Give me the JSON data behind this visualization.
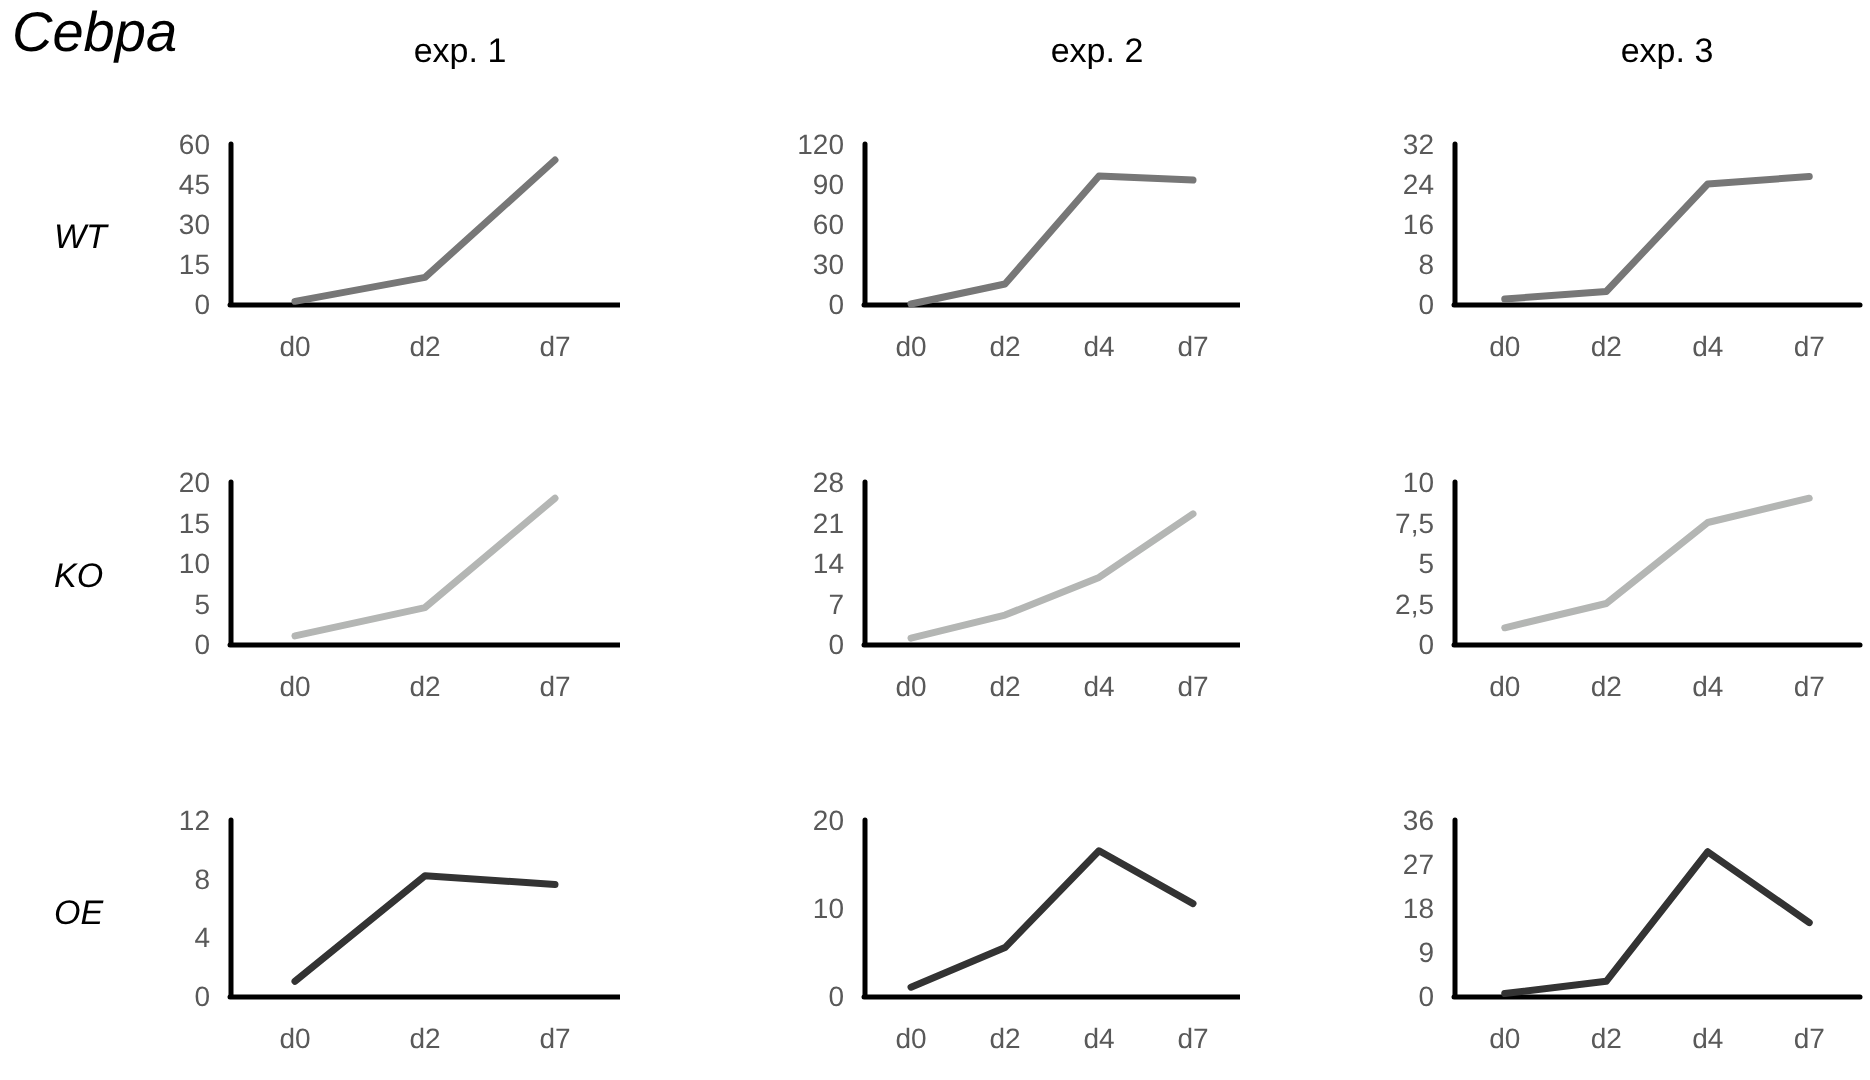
{
  "chart_data": [
    {
      "type": "line",
      "title": "exp. 1",
      "ylabel": "WT",
      "annotations": [
        "Cebpa"
      ],
      "categories": [
        "d0",
        "d2",
        "d7"
      ],
      "values": [
        1,
        10,
        54
      ],
      "color": "#777777",
      "ylim": [
        0,
        60
      ],
      "yticks": [
        0,
        15,
        30,
        45,
        60
      ]
    },
    {
      "type": "line",
      "title": "exp. 2",
      "categories": [
        "d0",
        "d2",
        "d4",
        "d7"
      ],
      "values": [
        0,
        15,
        96,
        93
      ],
      "color": "#777777",
      "ylim": [
        0,
        120
      ],
      "yticks": [
        0,
        30,
        60,
        90,
        120
      ]
    },
    {
      "type": "line",
      "title": "exp. 3",
      "categories": [
        "d0",
        "d2",
        "d4",
        "d7"
      ],
      "values": [
        1,
        2.5,
        24,
        25.5
      ],
      "color": "#777777",
      "ylim": [
        0,
        32
      ],
      "yticks": [
        0,
        8,
        16,
        24,
        32
      ]
    },
    {
      "type": "line",
      "ylabel": "KO",
      "categories": [
        "d0",
        "d2",
        "d7"
      ],
      "values": [
        1,
        4.5,
        18
      ],
      "color": "#b4b6b4",
      "ylim": [
        0,
        20
      ],
      "yticks": [
        0,
        5,
        10,
        15,
        20
      ]
    },
    {
      "type": "line",
      "categories": [
        "d0",
        "d2",
        "d4",
        "d7"
      ],
      "values": [
        1,
        5,
        11.5,
        22.5
      ],
      "color": "#b4b6b4",
      "ylim": [
        0,
        28
      ],
      "yticks": [
        0,
        7,
        14,
        21,
        28
      ]
    },
    {
      "type": "line",
      "categories": [
        "d0",
        "d2",
        "d4",
        "d7"
      ],
      "values": [
        1,
        2.5,
        7.5,
        9
      ],
      "color": "#b4b6b4",
      "ylim": [
        0,
        10
      ],
      "yticks": [
        0,
        {
          "value": 2.5,
          "label": "2,5"
        },
        5,
        {
          "value": 7.5,
          "label": "7,5"
        },
        10
      ]
    },
    {
      "type": "line",
      "ylabel": "OE",
      "categories": [
        "d0",
        "d2",
        "d7"
      ],
      "values": [
        1,
        8.2,
        7.6
      ],
      "color": "#333333",
      "ylim": [
        0,
        12
      ],
      "yticks": [
        0,
        4,
        8,
        12
      ]
    },
    {
      "type": "line",
      "categories": [
        "d0",
        "d2",
        "d4",
        "d7"
      ],
      "values": [
        1,
        5.5,
        16.5,
        10.5
      ],
      "color": "#333333",
      "ylim": [
        0,
        20
      ],
      "yticks": [
        0,
        10,
        20
      ]
    },
    {
      "type": "line",
      "categories": [
        "d0",
        "d2",
        "d4",
        "d7"
      ],
      "values": [
        0.5,
        3,
        29.5,
        15
      ],
      "color": "#333333",
      "ylim": [
        0,
        36
      ],
      "yticks": [
        0,
        9,
        18,
        27,
        36
      ]
    }
  ]
}
